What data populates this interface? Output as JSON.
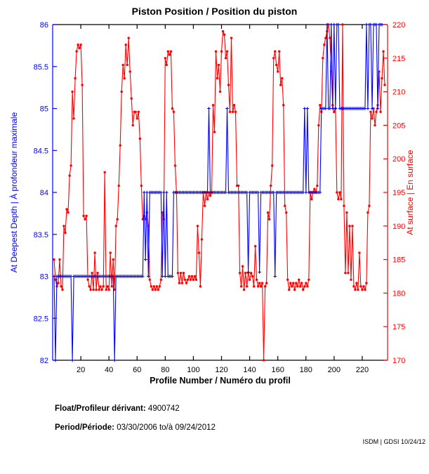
{
  "title": "Piston Position / Position du piston",
  "footer": {
    "float_label": "Float/Profileur dérivant:",
    "float_value": "4900742",
    "period_label": "Period/Période:",
    "period_value": "03/30/2006 to/à  09/24/2012",
    "credit": "ISDM | GDSI 10/24/12"
  },
  "chart_data": {
    "type": "line",
    "title": "Piston Position / Position du piston",
    "xlabel": "Profile Number / Numéro du profil",
    "x_start": 1,
    "xlim": [
      0,
      238
    ],
    "x_ticks": [
      20,
      40,
      60,
      80,
      100,
      120,
      140,
      160,
      180,
      200,
      220
    ],
    "grid": false,
    "legend": "none",
    "left_axis": {
      "label": "At Deepest Depth | À profondeur maximale",
      "color": "#0000ff",
      "lim": [
        82,
        86
      ],
      "ticks": [
        82,
        82.5,
        83,
        83.5,
        84,
        84.5,
        85,
        85.5,
        86
      ]
    },
    "right_axis": {
      "label": "At surface | En surface",
      "color": "#ff0000",
      "lim": [
        170,
        220
      ],
      "ticks": [
        170,
        175,
        180,
        185,
        190,
        195,
        200,
        205,
        210,
        215,
        220
      ]
    },
    "series": [
      {
        "name": "Piston position at deepest depth",
        "axis": "left",
        "color": "#0000ff",
        "marker": "plus",
        "values": [
          83,
          82,
          83,
          83,
          83,
          83,
          83,
          83,
          83,
          83,
          83,
          83,
          83,
          82,
          83,
          83,
          83,
          83,
          83,
          83,
          83,
          83,
          83,
          83,
          83,
          83,
          83,
          83,
          83,
          83,
          83,
          83,
          83,
          83,
          83,
          83,
          83,
          83,
          83,
          83,
          83,
          83,
          83,
          82,
          83,
          83,
          83,
          83,
          83,
          83,
          83,
          83,
          83,
          83,
          83,
          83,
          83,
          83,
          83,
          83,
          83,
          83,
          83,
          83,
          84,
          83.2,
          84,
          83,
          84,
          84,
          84,
          84,
          84,
          84,
          84,
          84,
          84,
          83,
          84,
          83,
          84,
          83,
          83,
          83,
          83,
          84,
          84,
          84,
          84,
          84,
          84,
          84,
          84,
          84,
          84,
          84,
          84,
          84,
          84,
          84,
          84,
          84,
          84,
          84,
          84,
          84,
          84,
          84,
          84,
          84,
          85,
          84,
          84,
          84,
          84,
          84,
          84,
          84,
          84,
          84,
          84,
          84,
          84,
          85,
          84,
          84,
          84,
          84,
          84,
          84,
          84,
          84,
          84,
          84,
          84,
          84,
          84,
          84,
          83.05,
          84,
          84,
          84,
          84,
          84,
          84,
          84,
          83.05,
          84,
          84,
          84,
          84,
          84,
          84,
          84,
          84,
          84,
          84,
          83,
          84,
          84,
          84,
          84,
          84,
          84,
          84,
          84,
          84,
          84,
          84,
          84,
          84,
          84,
          84,
          84,
          84,
          84,
          84,
          84,
          85,
          84,
          85,
          84,
          84,
          84,
          84,
          84,
          84,
          84,
          84,
          84,
          85,
          85,
          85,
          85,
          86,
          85,
          85,
          86,
          85,
          86,
          85,
          86,
          86,
          85,
          85,
          85,
          85,
          85,
          85,
          85,
          85,
          85,
          85,
          85,
          85,
          85,
          85,
          85,
          85,
          85,
          85,
          85,
          86,
          85,
          86,
          86,
          85,
          86,
          86,
          86,
          85,
          86,
          86,
          86
        ]
      },
      {
        "name": "Piston position at surface",
        "axis": "right",
        "color": "#ff0000",
        "marker": "dot",
        "values": [
          185,
          182,
          181,
          181.5,
          185,
          181,
          180.5,
          190,
          189,
          192.5,
          192,
          197.5,
          199,
          210,
          206,
          212,
          216,
          217,
          216.5,
          217,
          211,
          191.5,
          191,
          191.5,
          182,
          181,
          180.5,
          183,
          180.5,
          186,
          180.5,
          183,
          180.5,
          181,
          180.5,
          181,
          198,
          180.5,
          181,
          180.5,
          186,
          181,
          185,
          180.5,
          190,
          191,
          196,
          202,
          210,
          214,
          212,
          217,
          214,
          218,
          213,
          209,
          205,
          207,
          207,
          206,
          207,
          203,
          196,
          191,
          191.5,
          191,
          192,
          190,
          182,
          181,
          180.5,
          181,
          180.5,
          181,
          180.5,
          181,
          182,
          192,
          191,
          215,
          214,
          216,
          215.5,
          216,
          207.5,
          207,
          199,
          195,
          183,
          181.5,
          183,
          181.5,
          183,
          182,
          181.5,
          182,
          182.5,
          182,
          182.5,
          182,
          182.5,
          182,
          190,
          186,
          181,
          188,
          195,
          193,
          195,
          194,
          195,
          194.5,
          195,
          208,
          204,
          216,
          212,
          214,
          210,
          216,
          219,
          218.5,
          215,
          216,
          211,
          207,
          218,
          207,
          208,
          207,
          196,
          196,
          183,
          181,
          184,
          180.5,
          183,
          181,
          183,
          182,
          183,
          182.5,
          181,
          187,
          182,
          181,
          181.5,
          181,
          181.5,
          170,
          181,
          181.5,
          192,
          191,
          196,
          199,
          215,
          216,
          214,
          213,
          216,
          211,
          212,
          208,
          193,
          192,
          182,
          180.5,
          181.5,
          181,
          181.5,
          180.5,
          181.5,
          181,
          182,
          181,
          181.5,
          180.5,
          181,
          181.5,
          181,
          182,
          195,
          194,
          195,
          195.5,
          195,
          196,
          205,
          208,
          207,
          215,
          217,
          218,
          219,
          220,
          218,
          213,
          208,
          207,
          207.5,
          195,
          194,
          195,
          194,
          220,
          193,
          183,
          192,
          183,
          190,
          182,
          190,
          181,
          180.5,
          181.5,
          180.5,
          186,
          181,
          180.5,
          181,
          180.5,
          181.5,
          192,
          193,
          207,
          206,
          207.5,
          205,
          207,
          208,
          213,
          207,
          212,
          216,
          211
        ]
      }
    ]
  }
}
